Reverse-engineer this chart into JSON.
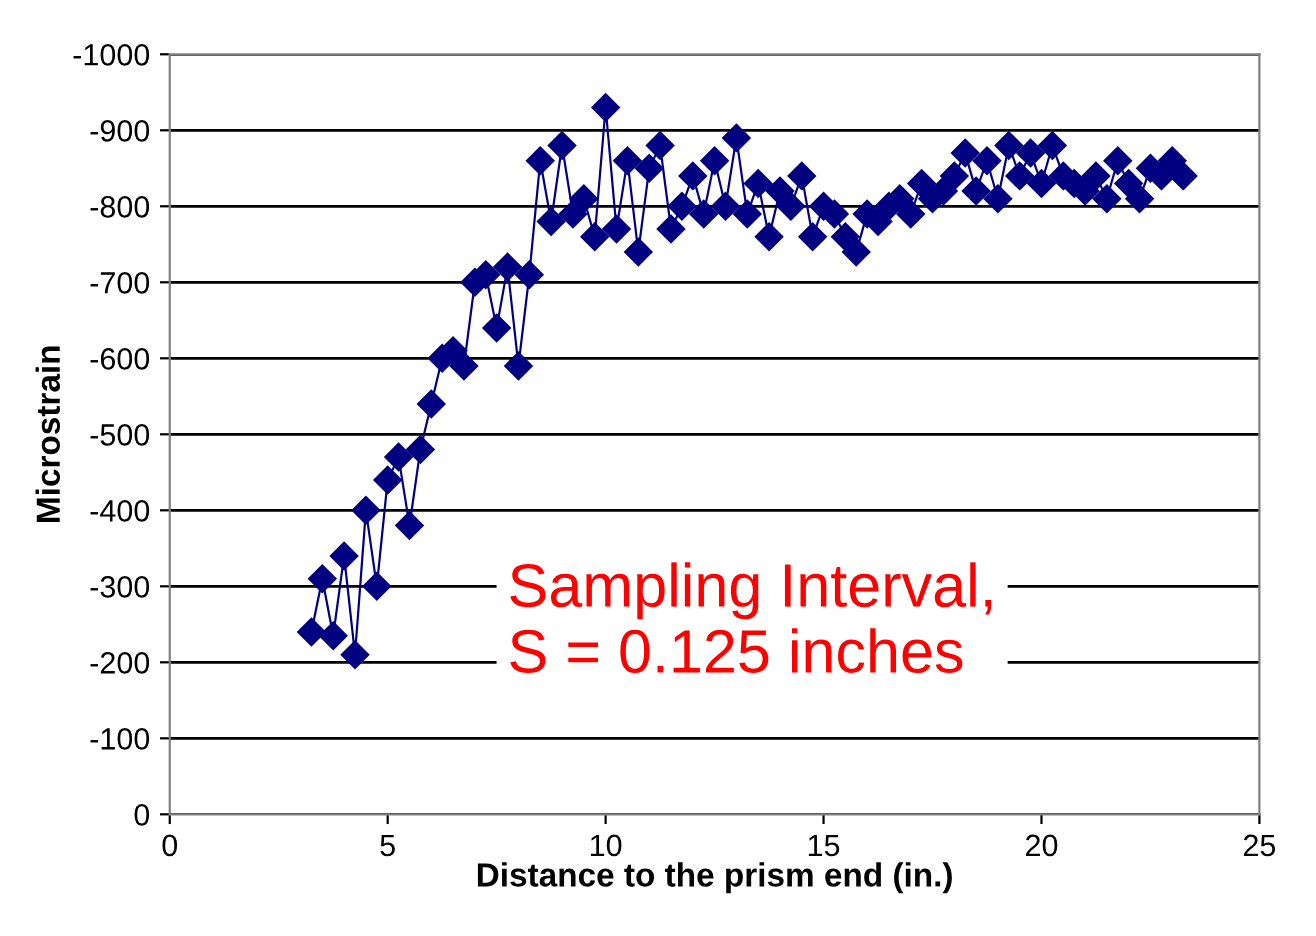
{
  "chart_data": {
    "type": "line",
    "xlabel": "Distance to the prism end (in.)",
    "ylabel": "Microstrain",
    "x": [
      3.25,
      3.5,
      3.75,
      4.0,
      4.25,
      4.5,
      4.75,
      5.0,
      5.25,
      5.5,
      5.75,
      6.0,
      6.25,
      6.5,
      6.75,
      7.0,
      7.25,
      7.5,
      7.75,
      8.0,
      8.25,
      8.5,
      8.75,
      9.0,
      9.25,
      9.5,
      9.75,
      10.0,
      10.25,
      10.5,
      10.75,
      11.0,
      11.25,
      11.5,
      11.75,
      12.0,
      12.25,
      12.5,
      12.75,
      13.0,
      13.25,
      13.5,
      13.75,
      14.0,
      14.25,
      14.5,
      14.75,
      15.0,
      15.25,
      15.5,
      15.75,
      16.0,
      16.25,
      16.5,
      16.75,
      17.0,
      17.25,
      17.5,
      17.75,
      18.0,
      18.25,
      18.5,
      18.75,
      19.0,
      19.25,
      19.5,
      19.75,
      20.0,
      20.25,
      20.5,
      20.75,
      21.0,
      21.25,
      21.5,
      21.75,
      22.0,
      22.25,
      22.5,
      22.75,
      23.0,
      23.25
    ],
    "series": [
      {
        "color": "#000080",
        "values": [
          -240,
          -310,
          -235,
          -340,
          -210,
          -400,
          -300,
          -440,
          -470,
          -380,
          -480,
          -540,
          -600,
          -610,
          -590,
          -700,
          -710,
          -640,
          -720,
          -590,
          -710,
          -860,
          -780,
          -880,
          -790,
          -810,
          -760,
          -930,
          -770,
          -860,
          -740,
          -850,
          -880,
          -770,
          -800,
          -840,
          -790,
          -860,
          -800,
          -890,
          -790,
          -830,
          -760,
          -820,
          -800,
          -840,
          -760,
          -800,
          -790,
          -760,
          -740,
          -790,
          -780,
          -800,
          -810,
          -790,
          -830,
          -810,
          -820,
          -840,
          -870,
          -820,
          -860,
          -810,
          -880,
          -840,
          -870,
          -830,
          -880,
          -840,
          -830,
          -820,
          -840,
          -810,
          -860,
          -830,
          -810,
          -850,
          -840,
          -860,
          -840
        ]
      }
    ],
    "xlim": [
      0,
      25
    ],
    "xticks": [
      0,
      5,
      10,
      15,
      20,
      25
    ],
    "ylim": [
      0,
      -1000
    ],
    "yticks": [
      0,
      -100,
      -200,
      -300,
      -400,
      -500,
      -600,
      -700,
      -800,
      -900,
      -1000
    ],
    "grid": "y",
    "marker": "diamond",
    "line_style": "solid",
    "legend": false,
    "annotations": [
      {
        "text": "Sampling Interval,\nS = 0.125 inches"
      }
    ]
  }
}
